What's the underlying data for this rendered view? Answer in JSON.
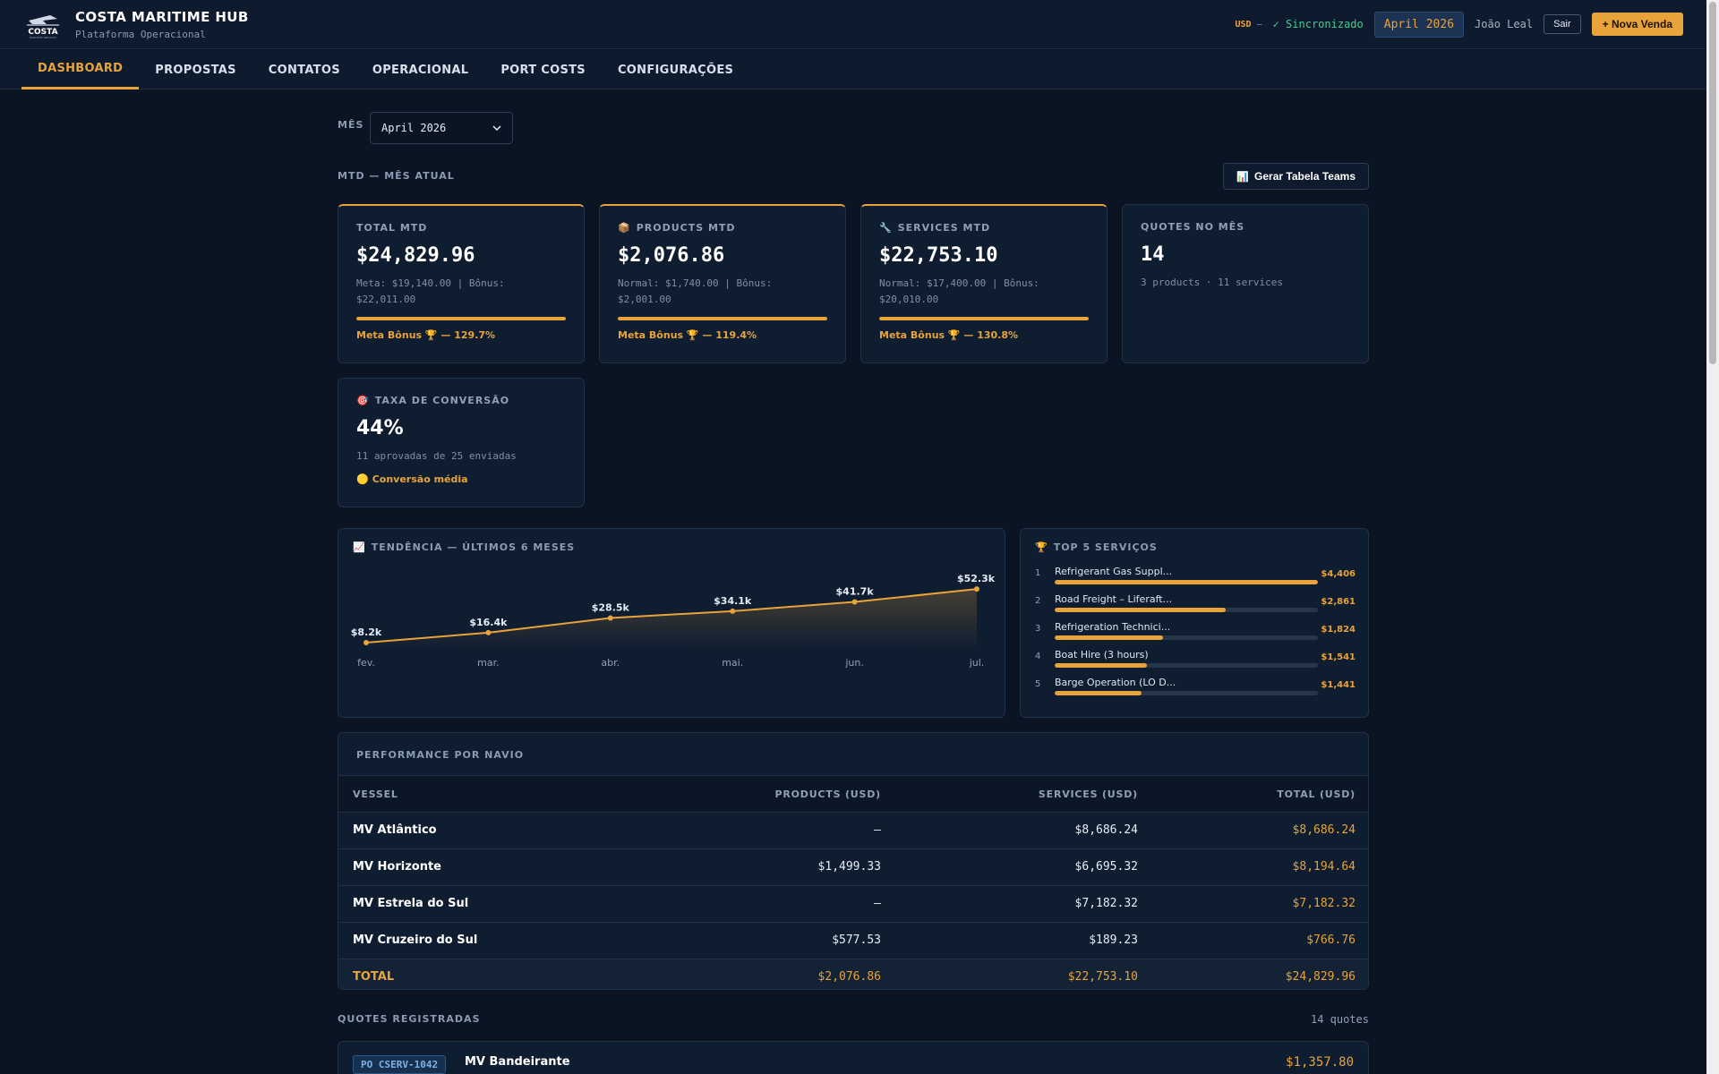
{
  "header": {
    "brand_title": "COSTA MARITIME HUB",
    "brand_subtitle": "Plataforma Operacional",
    "currency": "USD",
    "currency_sep": "—",
    "sync_status": "✓ Sincronizado",
    "month": "April 2026",
    "user_name": "João Leal",
    "logout_label": "Sair",
    "new_sale_label": "+ Nova Venda",
    "accent_color": "#e8a33a"
  },
  "nav": {
    "tabs": [
      {
        "label": "DASHBOARD",
        "active": true
      },
      {
        "label": "PROPOSTAS"
      },
      {
        "label": "CONTATOS"
      },
      {
        "label": "OPERACIONAL"
      },
      {
        "label": "PORT COSTS"
      },
      {
        "label": "CONFIGURAÇÕES"
      }
    ]
  },
  "filters": {
    "month_label": "MÊS",
    "month_value": "April 2026"
  },
  "mtd": {
    "section_title": "MTD — MÊS ATUAL",
    "teams_button": "Gerar Tabela Teams",
    "cards": {
      "total": {
        "label": "TOTAL MTD",
        "value": "$24,829.96",
        "sub_line1": "Meta: $19,140.00 | Bônus:",
        "sub_line2": "$22,011.00",
        "progress": 1.0,
        "foot": "Meta Bônus 🏆 — 129.7%"
      },
      "products": {
        "icon": "📦",
        "label": "PRODUCTS MTD",
        "value": "$2,076.86",
        "sub_line1": "Normal: $1,740.00 | Bônus:",
        "sub_line2": "$2,001.00",
        "progress": 1.0,
        "foot": "Meta Bônus 🏆 — 119.4%"
      },
      "services": {
        "icon": "🔧",
        "label": "SERVICES MTD",
        "value": "$22,753.10",
        "sub_line1": "Normal: $17,400.00 | Bônus:",
        "sub_line2": "$20,010.00",
        "progress": 1.0,
        "foot": "Meta Bônus 🏆 — 130.8%"
      },
      "quotes": {
        "label": "QUOTES NO MÊS",
        "value": "14",
        "sub": "3 products · 11 services"
      },
      "conversion": {
        "icon": "🎯",
        "label": "TAXA DE CONVERSÃO",
        "value": "44%",
        "sub": "11 aprovadas de 25 enviadas",
        "foot_icon": "🟡",
        "foot": "Conversão média"
      }
    }
  },
  "trend": {
    "icon": "📈",
    "title": "TENDÊNCIA — ÚLTIMOS 6 MESES"
  },
  "chart_data": {
    "type": "area",
    "categories": [
      "fev.",
      "mar.",
      "abr.",
      "mai.",
      "jun.",
      "jul."
    ],
    "values": [
      8.2,
      16.4,
      28.5,
      34.1,
      41.7,
      52.3
    ],
    "labels": [
      "$8.2k",
      "$16.4k",
      "$28.5k",
      "$34.1k",
      "$41.7k",
      "$52.3k"
    ],
    "ylim": [
      0,
      55
    ],
    "grid": false
  },
  "top5": {
    "icon": "🏆",
    "title": "TOP 5 SERVIÇOS",
    "items": [
      {
        "rank": "1",
        "name": "Refrigerant Gas Suppl...",
        "value": "$4,406",
        "share": 1.0
      },
      {
        "rank": "2",
        "name": "Road Freight – Liferaft...",
        "value": "$2,861",
        "share": 0.65
      },
      {
        "rank": "3",
        "name": "Refrigeration Technici...",
        "value": "$1,824",
        "share": 0.41
      },
      {
        "rank": "4",
        "name": "Boat Hire (3 hours)",
        "value": "$1,541",
        "share": 0.35
      },
      {
        "rank": "5",
        "name": "Barge Operation (LO D...",
        "value": "$1,441",
        "share": 0.33
      }
    ]
  },
  "vessels": {
    "title": "PERFORMANCE POR NAVIO",
    "columns": [
      "VESSEL",
      "PRODUCTS (USD)",
      "SERVICES (USD)",
      "TOTAL (USD)"
    ],
    "rows": [
      [
        "MV Atlântico",
        "—",
        "$8,686.24",
        "$8,686.24"
      ],
      [
        "MV Horizonte",
        "$1,499.33",
        "$6,695.32",
        "$8,194.64"
      ],
      [
        "MV Estrela do Sul",
        "—",
        "$7,182.32",
        "$7,182.32"
      ],
      [
        "MV Cruzeiro do Sul",
        "$577.53",
        "$189.23",
        "$766.76"
      ]
    ],
    "total": [
      "TOTAL",
      "$2,076.86",
      "$22,753.10",
      "$24,829.96"
    ]
  },
  "quotes": {
    "title": "QUOTES REGISTRADAS",
    "count": "14 quotes",
    "items": [
      {
        "po": "PO CSERV-1042",
        "vessel": "MV Bandeirante",
        "value": "$1,357.80"
      }
    ]
  }
}
